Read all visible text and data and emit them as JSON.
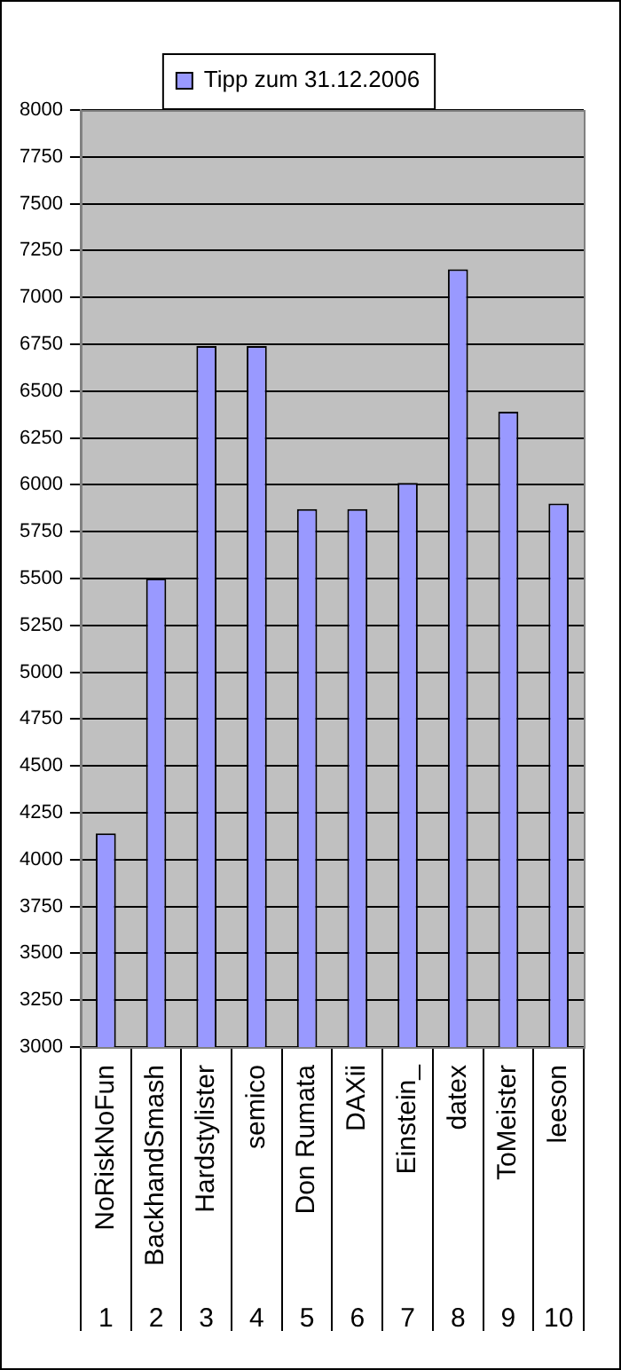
{
  "chart_data": {
    "type": "bar",
    "categories": [
      "NoRiskNoFun",
      "BackhandSmash",
      "Hardstylister",
      "semico",
      "Don Rumata",
      "DAXii",
      "Einstein_",
      "datex",
      "ToMeister",
      "leeson"
    ],
    "series": [
      {
        "name": "Tipp zum 31.12.2006",
        "color": "#9999ff",
        "values": [
          4140,
          5500,
          6740,
          6740,
          5870,
          5870,
          6010,
          7150,
          6390,
          5900
        ]
      }
    ],
    "ylim": [
      3000,
      8000
    ],
    "yticks": [
      3000,
      3250,
      3500,
      3750,
      4000,
      4250,
      4500,
      4750,
      5000,
      5250,
      5500,
      5750,
      6000,
      6250,
      6500,
      6750,
      7000,
      7250,
      7500,
      7750,
      8000
    ],
    "grid": "y",
    "legend": "top",
    "annotations": [
      "1",
      "2",
      "3",
      "4",
      "5",
      "6",
      "7",
      "8",
      "9",
      "10"
    ]
  }
}
